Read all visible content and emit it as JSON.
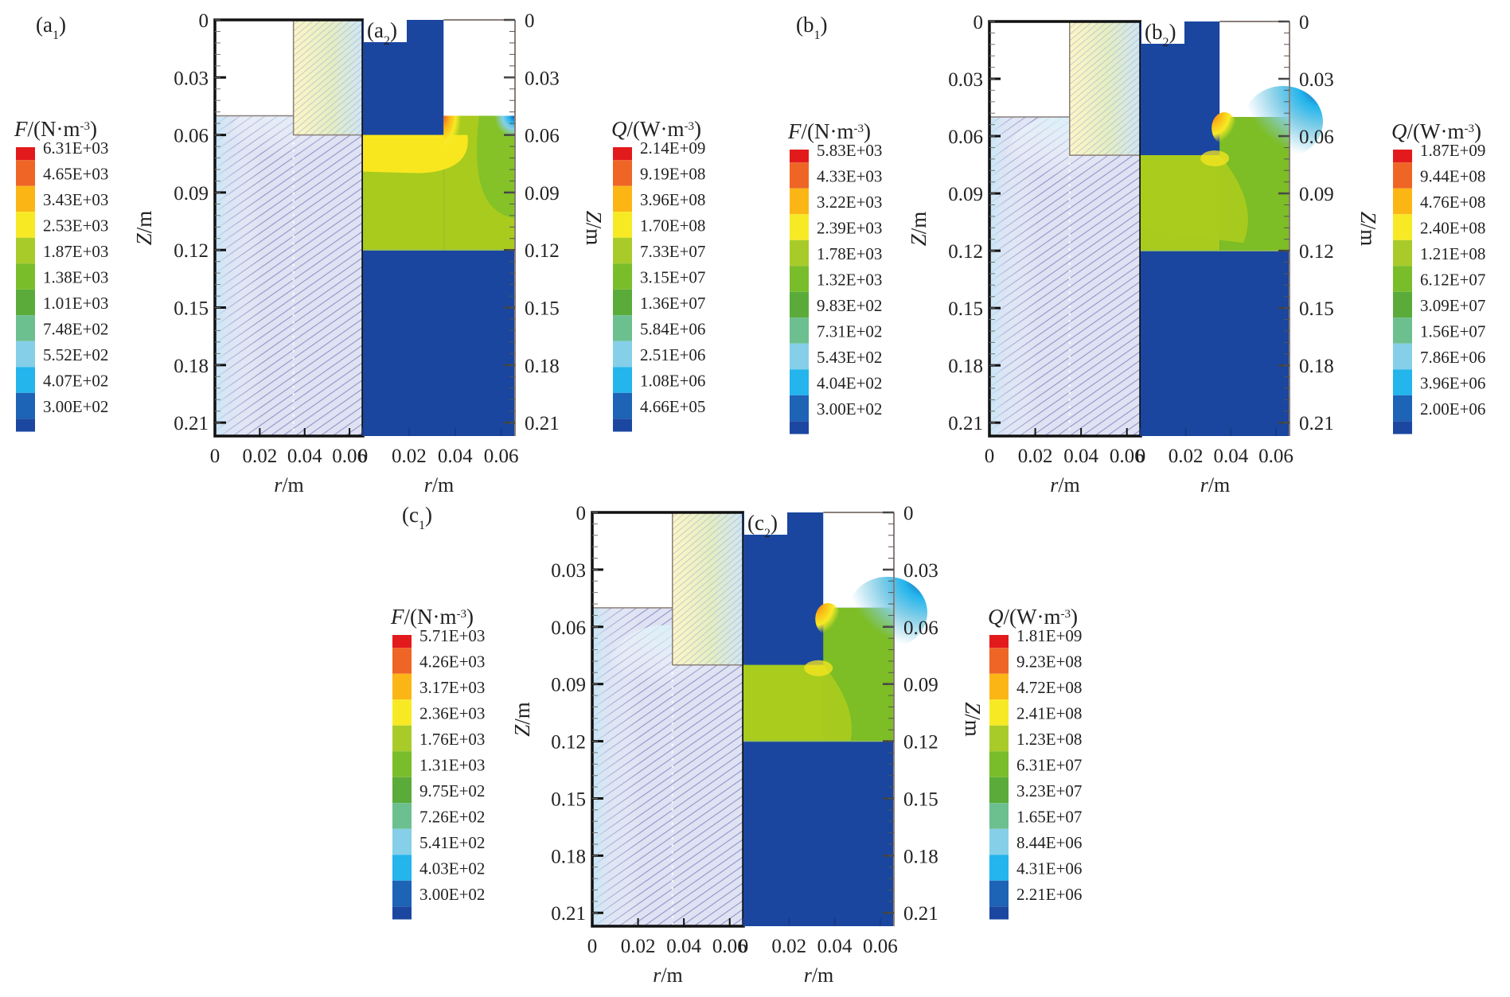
{
  "figure": {
    "description": "Electromagnetic force density (F) and Joule heat density (Q) contour maps for three crucible configurations"
  },
  "chart_data": [
    {
      "type": "heatmap",
      "id": "a1",
      "panel_label": "(a1)",
      "panel_letter": "a",
      "panel_sub": "1",
      "quantity": "F",
      "legend_title_var": "F",
      "legend_title_unit": "/(N·m",
      "legend_title_exp": "-3",
      "legend_title_close": ")",
      "legend_levels": [
        "6.31E+03",
        "4.65E+03",
        "3.43E+03",
        "2.53E+03",
        "1.87E+03",
        "1.38E+03",
        "1.01E+03",
        "7.48E+02",
        "5.52E+02",
        "4.07E+02",
        "3.00E+02"
      ],
      "xlabel_var": "r",
      "xlabel_unit": "/m",
      "ylabel_var": "Z",
      "ylabel_unit": "/m",
      "x_ticks": [
        "0",
        "0.02",
        "0.04",
        "0.06"
      ],
      "y_ticks": [
        "0",
        "0.03",
        "0.06",
        "0.09",
        "0.12",
        "0.15",
        "0.18",
        "0.21"
      ],
      "xlim": [
        0,
        0.066
      ],
      "ylim": [
        0,
        0.217
      ],
      "y_axis_inverted": true,
      "regions": {
        "left_void_bottom_z": 0.05,
        "right_block_bottom_z": 0.06,
        "step_r": 0.035
      }
    },
    {
      "type": "heatmap",
      "id": "a2",
      "panel_label": "(a2)",
      "panel_letter": "a",
      "panel_sub": "2",
      "quantity": "Q",
      "legend_title_var": "Q",
      "legend_title_unit": "/(W·m",
      "legend_title_exp": "-3",
      "legend_title_close": ")",
      "legend_levels": [
        "2.14E+09",
        "9.19E+08",
        "3.96E+08",
        "1.70E+08",
        "7.33E+07",
        "3.15E+07",
        "1.36E+07",
        "5.84E+06",
        "2.51E+06",
        "1.08E+06",
        "4.66E+05"
      ],
      "xlabel_var": "r",
      "xlabel_unit": "/m",
      "ylabel_var": "Z",
      "ylabel_unit": "/m",
      "x_ticks": [
        "0",
        "0.02",
        "0.04",
        "0.06"
      ],
      "y_ticks": [
        "0",
        "0.03",
        "0.06",
        "0.09",
        "0.12",
        "0.15",
        "0.18",
        "0.21"
      ],
      "xlim": [
        0,
        0.066
      ],
      "ylim": [
        0,
        0.217
      ],
      "y_axis_inverted": true,
      "regions": {
        "void_bottom_z": 0.05,
        "block_bottom_z": 0.06,
        "step_r": 0.035,
        "heated_bottom_z": 0.12
      }
    },
    {
      "type": "heatmap",
      "id": "b1",
      "panel_label": "(b1)",
      "panel_letter": "b",
      "panel_sub": "1",
      "quantity": "F",
      "legend_title_var": "F",
      "legend_title_unit": "/(N·m",
      "legend_title_exp": "-3",
      "legend_title_close": ")",
      "legend_levels": [
        "5.83E+03",
        "4.33E+03",
        "3.22E+03",
        "2.39E+03",
        "1.78E+03",
        "1.32E+03",
        "9.83E+02",
        "7.31E+02",
        "5.43E+02",
        "4.04E+02",
        "3.00E+02"
      ],
      "xlabel_var": "r",
      "xlabel_unit": "/m",
      "ylabel_var": "Z",
      "ylabel_unit": "/m",
      "x_ticks": [
        "0",
        "0.02",
        "0.04",
        "0.06"
      ],
      "y_ticks": [
        "0",
        "0.03",
        "0.06",
        "0.09",
        "0.12",
        "0.15",
        "0.18",
        "0.21"
      ],
      "xlim": [
        0,
        0.066
      ],
      "ylim": [
        0,
        0.217
      ],
      "y_axis_inverted": true,
      "regions": {
        "left_void_bottom_z": 0.05,
        "right_block_bottom_z": 0.07,
        "step_r": 0.035
      }
    },
    {
      "type": "heatmap",
      "id": "b2",
      "panel_label": "(b2)",
      "panel_letter": "b",
      "panel_sub": "2",
      "quantity": "Q",
      "legend_title_var": "Q",
      "legend_title_unit": "/(W·m",
      "legend_title_exp": "-3",
      "legend_title_close": ")",
      "legend_levels": [
        "1.87E+09",
        "9.44E+08",
        "4.76E+08",
        "2.40E+08",
        "1.21E+08",
        "6.12E+07",
        "3.09E+07",
        "1.56E+07",
        "7.86E+06",
        "3.96E+06",
        "2.00E+06"
      ],
      "xlabel_var": "r",
      "xlabel_unit": "/m",
      "ylabel_var": "Z",
      "ylabel_unit": "/m",
      "x_ticks": [
        "0",
        "0.02",
        "0.04",
        "0.06"
      ],
      "y_ticks": [
        "0",
        "0.03",
        "0.06",
        "0.09",
        "0.12",
        "0.15",
        "0.18",
        "0.21"
      ],
      "xlim": [
        0,
        0.066
      ],
      "ylim": [
        0,
        0.217
      ],
      "y_axis_inverted": true,
      "regions": {
        "void_bottom_z": 0.05,
        "block_bottom_z": 0.07,
        "step_r": 0.035,
        "heated_bottom_z": 0.12
      }
    },
    {
      "type": "heatmap",
      "id": "c1",
      "panel_label": "(c1)",
      "panel_letter": "c",
      "panel_sub": "1",
      "quantity": "F",
      "legend_title_var": "F",
      "legend_title_unit": "/(N·m",
      "legend_title_exp": "-3",
      "legend_title_close": ")",
      "legend_levels": [
        "5.71E+03",
        "4.26E+03",
        "3.17E+03",
        "2.36E+03",
        "1.76E+03",
        "1.31E+03",
        "9.75E+02",
        "7.26E+02",
        "5.41E+02",
        "4.03E+02",
        "3.00E+02"
      ],
      "xlabel_var": "r",
      "xlabel_unit": "/m",
      "ylabel_var": "Z",
      "ylabel_unit": "/m",
      "x_ticks": [
        "0",
        "0.02",
        "0.04",
        "0.06"
      ],
      "y_ticks": [
        "0",
        "0.03",
        "0.06",
        "0.09",
        "0.12",
        "0.15",
        "0.18",
        "0.21"
      ],
      "xlim": [
        0,
        0.066
      ],
      "ylim": [
        0,
        0.217
      ],
      "y_axis_inverted": true,
      "regions": {
        "left_void_bottom_z": 0.05,
        "right_block_bottom_z": 0.08,
        "step_r": 0.035
      }
    },
    {
      "type": "heatmap",
      "id": "c2",
      "panel_label": "(c2)",
      "panel_letter": "c",
      "panel_sub": "2",
      "quantity": "Q",
      "legend_title_var": "Q",
      "legend_title_unit": "/(W·m",
      "legend_title_exp": "-3",
      "legend_title_close": ")",
      "legend_levels": [
        "1.81E+09",
        "9.23E+08",
        "4.72E+08",
        "2.41E+08",
        "1.23E+08",
        "6.31E+07",
        "3.23E+07",
        "1.65E+07",
        "8.44E+06",
        "4.31E+06",
        "2.21E+06"
      ],
      "xlabel_var": "r",
      "xlabel_unit": "/m",
      "ylabel_var": "Z",
      "ylabel_unit": "/m",
      "x_ticks": [
        "0",
        "0.02",
        "0.04",
        "0.06"
      ],
      "y_ticks": [
        "0",
        "0.03",
        "0.06",
        "0.09",
        "0.12",
        "0.15",
        "0.18",
        "0.21"
      ],
      "xlim": [
        0,
        0.066
      ],
      "ylim": [
        0,
        0.217
      ],
      "y_axis_inverted": true,
      "regions": {
        "void_bottom_z": 0.05,
        "block_bottom_z": 0.08,
        "step_r": 0.035,
        "heated_bottom_z": 0.12
      }
    }
  ],
  "colormap": [
    "#e31a1c",
    "#ee6526",
    "#fbb616",
    "#f7ea25",
    "#a8cb2a",
    "#79bd2a",
    "#5aab3a",
    "#6cbf8f",
    "#86cfe8",
    "#23b5ec",
    "#1d63b6",
    "#1b47a0"
  ],
  "colors": {
    "vector_field": "#8e94c8",
    "vector_field_light": "#c6e3f3",
    "q_background": "#1a469f",
    "q_heated": "#a9cb1e",
    "q_hot": "#f8e71f",
    "q_mid_green": "#7dbd25",
    "axis": "#111111"
  }
}
